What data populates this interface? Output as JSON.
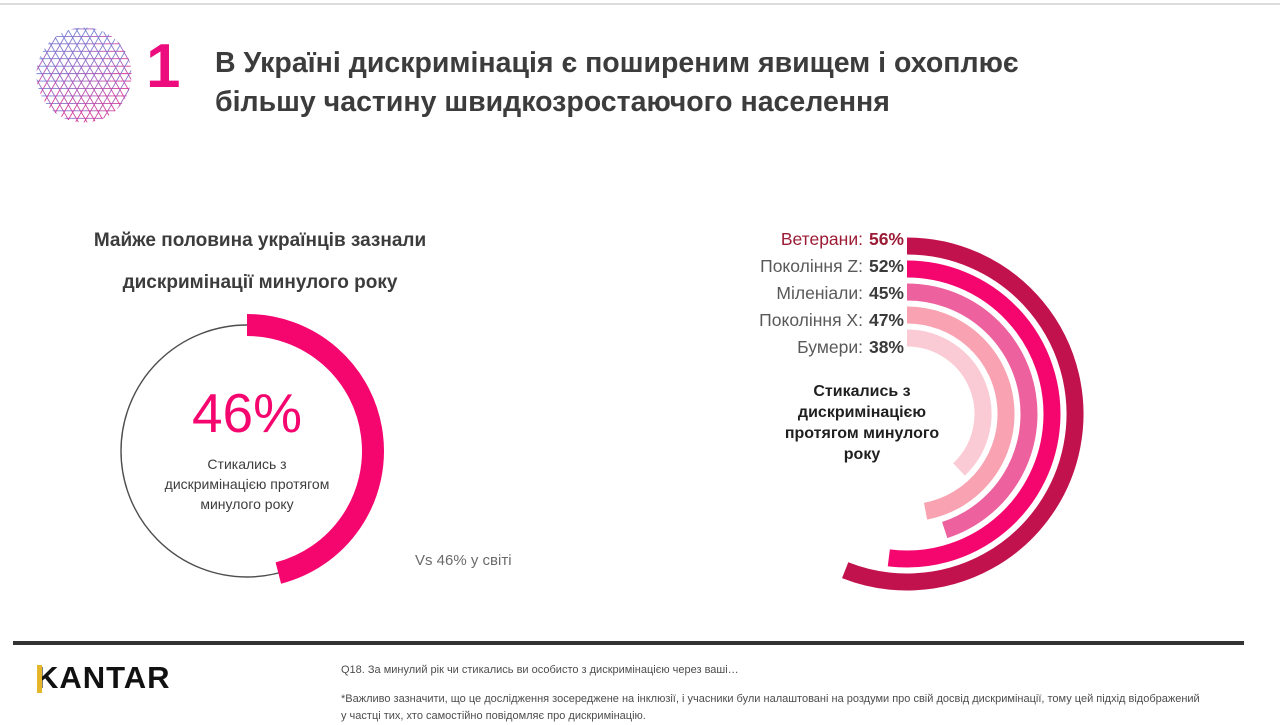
{
  "page": {
    "background": "#FFFFFF",
    "top_rule_color": "#DCDCDC",
    "footer_rule_color": "#333333"
  },
  "header": {
    "slide_number": "1",
    "number_color": "#EC0C7D",
    "title": "В Україні дискримінація є поширеним явищем і охоплює\nбільшу частину швидкозростаючого населення",
    "title_color": "#3C3C3C",
    "logo_icon": "kantar-mesh-sphere",
    "logo_gradient": [
      "#6E8BD8",
      "#8F6CC8",
      "#C84BA8",
      "#E0338F"
    ]
  },
  "chart_data": [
    {
      "type": "donut",
      "title": "Майже половина українців зазнали\nдискримінації минулого року",
      "center_value": "46%",
      "value": 46,
      "max": 100,
      "caption": "Стикались з\nдискримінацією протягом\nминулого року",
      "annotation": "Vs 46% у світі",
      "accent_color": "#F5066F",
      "ring_color": "#4D4D4D",
      "start_angle_deg": 0,
      "direction": "clockwise"
    },
    {
      "type": "radial-bar",
      "start_angle_deg": 0,
      "direction": "clockwise",
      "max": 100,
      "center_label": "Стикались з\nдискримінацією\nпротягом минулого\nроку",
      "series": [
        {
          "label": "Ветерани:",
          "value": 56,
          "display": "56%",
          "color": "#C2124E",
          "label_color": "#9C1B35",
          "value_color": "#9C1B35"
        },
        {
          "label": "Покоління Z:",
          "value": 52,
          "display": "52%",
          "color": "#F5066F",
          "label_color": "#595959",
          "value_color": "#3A3A3A"
        },
        {
          "label": "Міленіали:",
          "value": 45,
          "display": "45%",
          "color": "#EC619E",
          "label_color": "#595959",
          "value_color": "#3A3A3A"
        },
        {
          "label": "Покоління X:",
          "value": 47,
          "display": "47%",
          "color": "#F8A2B2",
          "label_color": "#595959",
          "value_color": "#3A3A3A"
        },
        {
          "label": "Бумери:",
          "value": 38,
          "display": "38%",
          "color": "#FACBD5",
          "label_color": "#595959",
          "value_color": "#3A3A3A"
        }
      ]
    }
  ],
  "footer": {
    "brand": "KANTAR",
    "brand_accent_color": "#E5B52A",
    "question_note": "Q18. За минулий рік чи стикались ви особисто з дискримінацією через ваші…",
    "method_note": "*Важливо зазначити, що це дослідження зосереджене на інклюзії, і учасники були налаштовані на роздуми про свій досвід дискримінації, тому цей підхід відображений\nу частці тих, хто самостійно повідомляє про дискримінацію."
  }
}
